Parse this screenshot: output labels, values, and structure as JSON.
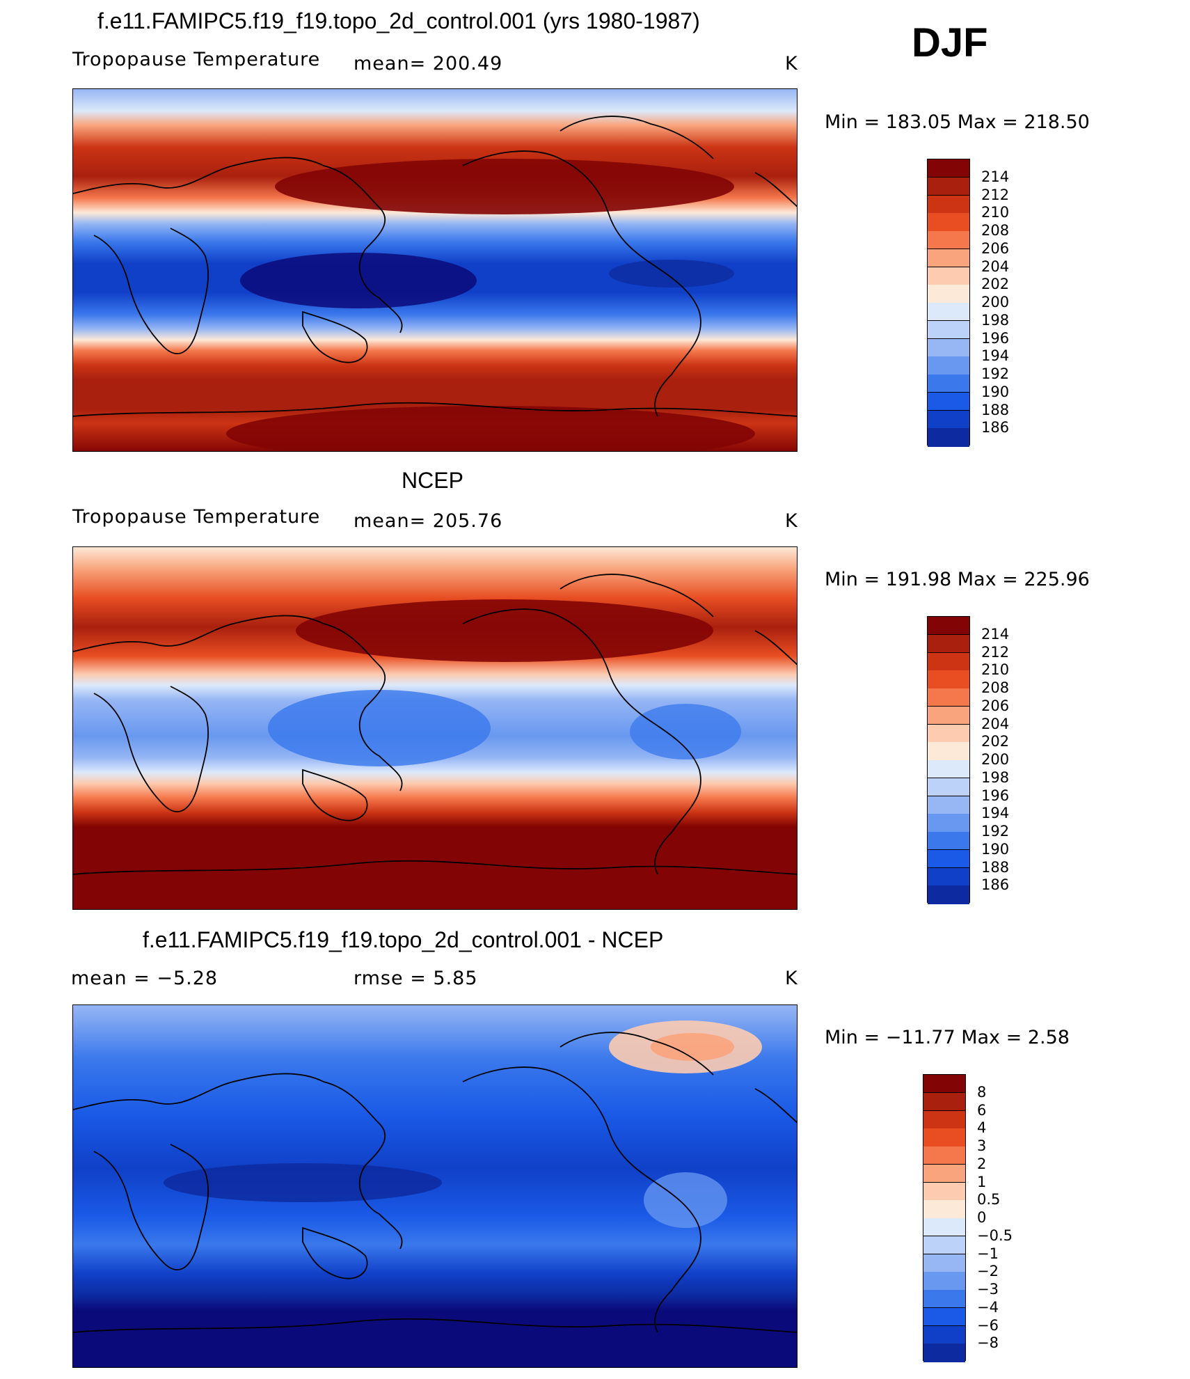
{
  "season": "DJF",
  "colors": {
    "pos_scale": [
      "#0a0a7a",
      "#0d2aa0",
      "#1040c8",
      "#1a5ae6",
      "#3a78ec",
      "#6898f0",
      "#96b6f4",
      "#bcd2f8",
      "#dce9fb",
      "#fde9d8",
      "#fccbb0",
      "#f9a47c",
      "#f5784c",
      "#e84e22",
      "#cc3414",
      "#a9200e",
      "#820404"
    ],
    "land_line": "#000000"
  },
  "panels": [
    {
      "id": "model",
      "title": "f.e11.FAMIPC5.f19_f19.topo_2d_control.001 (yrs 1980-1987)",
      "left_label": "Tropopause Temperature",
      "mean_label": "mean=  200.49",
      "units": "K",
      "minmax": "Min  =  183.05  Max  =  218.50"
    },
    {
      "id": "obs",
      "title": "NCEP",
      "left_label": "Tropopause Temperature",
      "mean_label": "mean=  205.76",
      "units": "K",
      "minmax": "Min  =  191.98  Max  =  225.96"
    },
    {
      "id": "diff",
      "title": "f.e11.FAMIPC5.f19_f19.topo_2d_control.001 - NCEP",
      "left_label": "mean =    −5.28",
      "mean_label": "rmse =     5.85",
      "units": "K",
      "minmax": "Min  =  −11.77  Max  =     2.58"
    }
  ],
  "legends": {
    "abs_ticks": [
      "214",
      "212",
      "210",
      "208",
      "206",
      "204",
      "202",
      "200",
      "198",
      "196",
      "194",
      "192",
      "190",
      "188",
      "186"
    ],
    "diff_ticks": [
      "8",
      "6",
      "4",
      "3",
      "2",
      "1",
      "0.5",
      "0",
      "−0.5",
      "−1",
      "−2",
      "−3",
      "−4",
      "−6",
      "−8"
    ]
  }
}
